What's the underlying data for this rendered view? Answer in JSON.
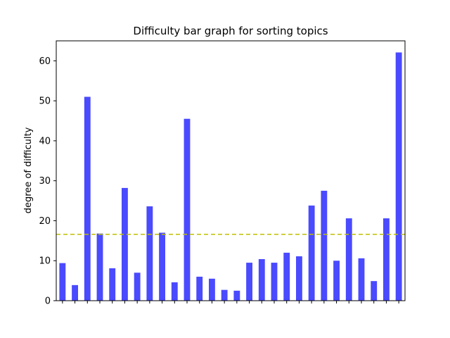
{
  "chart_data": {
    "type": "bar",
    "title": "Difficulty bar graph for sorting topics",
    "xlabel": "",
    "ylabel": "degree of difficulty",
    "ylim": [
      0,
      65
    ],
    "yticks": [
      0,
      10,
      20,
      30,
      40,
      50,
      60
    ],
    "values": [
      9.4,
      3.9,
      51.0,
      16.8,
      8.1,
      28.2,
      7.0,
      23.6,
      17.0,
      4.6,
      45.5,
      6.0,
      5.5,
      2.7,
      2.5,
      9.5,
      10.4,
      9.5,
      12.0,
      11.1,
      23.8,
      27.5,
      10.0,
      20.6,
      10.6,
      4.9,
      20.6,
      62.1
    ],
    "mean_line": 16.6,
    "bar_color": "#4a4aff",
    "mean_line_color": "#bfbf00",
    "grid": false,
    "legend": "none"
  }
}
